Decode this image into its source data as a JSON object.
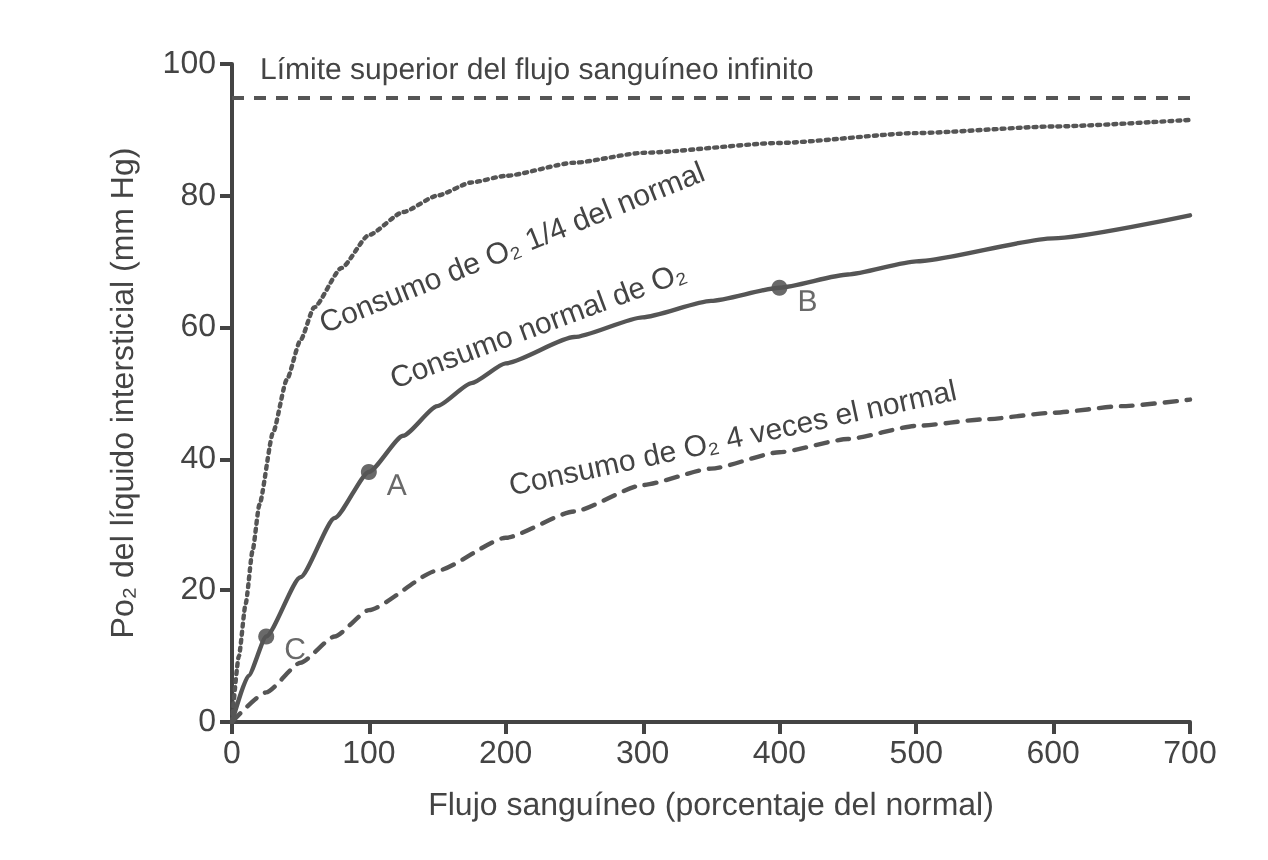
{
  "chart_data": {
    "type": "line",
    "xlabel": "Flujo sanguíneo (porcentaje del normal)",
    "ylabel": "Po₂ del líquido intersticial (mm Hg)",
    "xlim": [
      0,
      700
    ],
    "ylim": [
      0,
      100
    ],
    "xticks": [
      0,
      100,
      200,
      300,
      400,
      500,
      600,
      700
    ],
    "yticks": [
      0,
      20,
      40,
      60,
      80,
      100
    ],
    "grid": false,
    "legend": false,
    "marker": "none",
    "series": [
      {
        "name": "Consumo de O₂ 1/4 del normal",
        "color": "#555555",
        "line_style": "dotted",
        "x": [
          0,
          5,
          10,
          15,
          20,
          30,
          40,
          50,
          60,
          80,
          100,
          125,
          150,
          175,
          200,
          250,
          300,
          400,
          500,
          600,
          700
        ],
        "values": [
          0,
          10,
          18,
          26,
          33,
          44,
          52,
          58,
          63,
          69,
          74,
          77.5,
          80,
          82,
          83,
          85,
          86.5,
          88,
          89.5,
          90.5,
          91.5
        ]
      },
      {
        "name": "Consumo normal de O₂",
        "color": "#555555",
        "line_style": "solid",
        "x": [
          0,
          12,
          25,
          50,
          75,
          100,
          125,
          150,
          175,
          200,
          250,
          300,
          350,
          400,
          450,
          500,
          600,
          700
        ],
        "values": [
          0,
          7,
          13,
          22,
          31,
          38,
          43.5,
          48,
          51.5,
          54.5,
          58.5,
          61.5,
          64,
          66,
          68,
          70,
          73.5,
          77
        ]
      },
      {
        "name": "Consumo de O₂ 4 veces el normal",
        "color": "#555555",
        "line_style": "dashed",
        "x": [
          0,
          25,
          50,
          75,
          100,
          150,
          200,
          250,
          300,
          350,
          400,
          450,
          500,
          550,
          600,
          650,
          700
        ],
        "values": [
          0,
          4.5,
          9,
          13,
          17,
          23,
          28,
          32,
          36,
          38.5,
          41,
          43,
          45,
          46,
          47,
          48,
          49
        ]
      }
    ],
    "ref_lines": [
      {
        "axis": "y",
        "value": 95,
        "label": "Límite superior del flujo sanguíneo infinito",
        "color": "#555555",
        "line_style": "dashed"
      }
    ],
    "annotations": [
      {
        "text": "A",
        "x": 100,
        "y": 38
      },
      {
        "text": "B",
        "x": 400,
        "y": 66
      },
      {
        "text": "C",
        "x": 25,
        "y": 13
      }
    ]
  }
}
